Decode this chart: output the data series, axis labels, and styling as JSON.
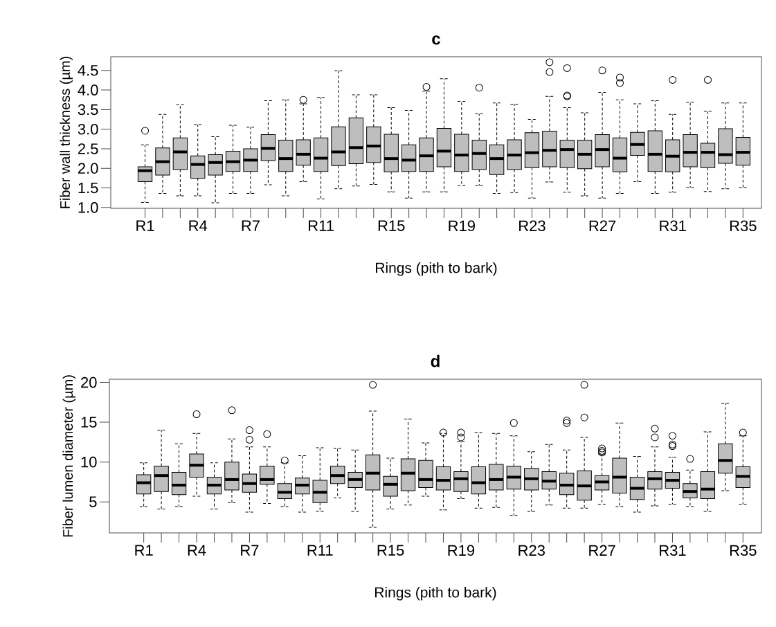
{
  "chart_data": [
    {
      "type": "box",
      "title": "c",
      "xlabel": "Rings (pith to bark)",
      "ylabel": "Fiber wall thickness (µm)",
      "color": "#bebebe",
      "categories": [
        "R1",
        null,
        null,
        "R4",
        null,
        null,
        "R7",
        null,
        null,
        null,
        "R11",
        null,
        null,
        null,
        "R15",
        null,
        null,
        null,
        "R19",
        null,
        null,
        null,
        "R23",
        null,
        null,
        null,
        "R27",
        null,
        null,
        null,
        "R31",
        null,
        null,
        null,
        "R35"
      ],
      "ylim": [
        0.98,
        4.85
      ],
      "yticks": [
        {
          "value": 1,
          "label": "1.0"
        },
        1.5,
        {
          "value": 2,
          "label": "2.0"
        },
        2.5,
        {
          "value": 3,
          "label": "3.0"
        },
        3.5,
        {
          "value": 4,
          "label": "4.0"
        },
        4.5
      ],
      "boxes": [
        {
          "low": 1.13,
          "q1": 1.66,
          "median": 1.94,
          "q3": 2.04,
          "high": 2.6,
          "outliers": [
            2.96
          ]
        },
        {
          "low": 1.36,
          "q1": 1.83,
          "median": 2.17,
          "q3": 2.52,
          "high": 3.38
        },
        {
          "low": 1.3,
          "q1": 1.97,
          "median": 2.42,
          "q3": 2.78,
          "high": 3.62
        },
        {
          "low": 1.3,
          "q1": 1.75,
          "median": 2.1,
          "q3": 2.32,
          "high": 3.12
        },
        {
          "low": 1.12,
          "q1": 1.83,
          "median": 2.15,
          "q3": 2.35,
          "high": 2.81
        },
        {
          "low": 1.36,
          "q1": 1.92,
          "median": 2.17,
          "q3": 2.44,
          "high": 3.1
        },
        {
          "low": 1.36,
          "q1": 1.92,
          "median": 2.21,
          "q3": 2.5,
          "high": 3.05
        },
        {
          "low": 1.58,
          "q1": 2.2,
          "median": 2.51,
          "q3": 2.86,
          "high": 3.73
        },
        {
          "low": 1.3,
          "q1": 1.92,
          "median": 2.25,
          "q3": 2.72,
          "high": 3.75
        },
        {
          "low": 1.66,
          "q1": 2.08,
          "median": 2.36,
          "q3": 2.73,
          "high": 3.65,
          "outliers": [
            3.75
          ]
        },
        {
          "low": 1.22,
          "q1": 1.92,
          "median": 2.26,
          "q3": 2.78,
          "high": 3.81
        },
        {
          "low": 1.48,
          "q1": 2.07,
          "median": 2.42,
          "q3": 3.06,
          "high": 4.49
        },
        {
          "low": 1.55,
          "q1": 2.12,
          "median": 2.53,
          "q3": 3.29,
          "high": 3.88
        },
        {
          "low": 1.59,
          "q1": 2.15,
          "median": 2.57,
          "q3": 3.06,
          "high": 3.88
        },
        {
          "low": 1.4,
          "q1": 1.91,
          "median": 2.25,
          "q3": 2.87,
          "high": 3.55
        },
        {
          "low": 1.24,
          "q1": 1.92,
          "median": 2.21,
          "q3": 2.6,
          "high": 3.48
        },
        {
          "low": 1.4,
          "q1": 1.92,
          "median": 2.32,
          "q3": 2.78,
          "high": 3.97,
          "outliers": [
            4.08
          ]
        },
        {
          "low": 1.4,
          "q1": 2.04,
          "median": 2.44,
          "q3": 3.02,
          "high": 4.29
        },
        {
          "low": 1.56,
          "q1": 1.92,
          "median": 2.34,
          "q3": 2.87,
          "high": 3.71
        },
        {
          "low": 1.56,
          "q1": 1.97,
          "median": 2.38,
          "q3": 2.72,
          "high": 3.39,
          "outliers": [
            4.06
          ]
        },
        {
          "low": 1.36,
          "q1": 1.84,
          "median": 2.25,
          "q3": 2.6,
          "high": 3.67
        },
        {
          "low": 1.38,
          "q1": 1.97,
          "median": 2.34,
          "q3": 2.73,
          "high": 3.64
        },
        {
          "low": 1.24,
          "q1": 2.02,
          "median": 2.4,
          "q3": 2.91,
          "high": 3.25
        },
        {
          "low": 1.65,
          "q1": 2.04,
          "median": 2.46,
          "q3": 2.95,
          "high": 3.84,
          "outliers": [
            4.71,
            4.46
          ]
        },
        {
          "low": 1.39,
          "q1": 2.02,
          "median": 2.48,
          "q3": 2.72,
          "high": 3.55,
          "outliers": [
            4.56,
            3.86,
            3.84
          ]
        },
        {
          "low": 1.3,
          "q1": 1.99,
          "median": 2.36,
          "q3": 2.72,
          "high": 3.42
        },
        {
          "low": 1.24,
          "q1": 2.04,
          "median": 2.48,
          "q3": 2.86,
          "high": 3.94,
          "outliers": [
            4.5
          ]
        },
        {
          "low": 1.36,
          "q1": 1.91,
          "median": 2.26,
          "q3": 2.78,
          "high": 3.75,
          "outliers": [
            4.32,
            4.18
          ]
        },
        {
          "low": 1.66,
          "q1": 2.33,
          "median": 2.61,
          "q3": 2.92,
          "high": 3.65
        },
        {
          "low": 1.36,
          "q1": 1.92,
          "median": 2.36,
          "q3": 2.96,
          "high": 3.73
        },
        {
          "low": 1.39,
          "q1": 1.91,
          "median": 2.31,
          "q3": 2.73,
          "high": 3.38,
          "outliers": [
            4.26
          ]
        },
        {
          "low": 1.51,
          "q1": 2.04,
          "median": 2.41,
          "q3": 2.86,
          "high": 3.69
        },
        {
          "low": 1.41,
          "q1": 2.02,
          "median": 2.41,
          "q3": 2.64,
          "high": 3.46,
          "outliers": [
            4.26
          ]
        },
        {
          "low": 1.48,
          "q1": 2.13,
          "median": 2.35,
          "q3": 3.01,
          "high": 3.67
        },
        {
          "low": 1.51,
          "q1": 2.08,
          "median": 2.41,
          "q3": 2.79,
          "high": 3.67
        }
      ]
    },
    {
      "type": "box",
      "title": "d",
      "xlabel": "Rings (pith to bark)",
      "ylabel": "Fiber lumen diameter (µm)",
      "color": "#bebebe",
      "categories": [
        "R1",
        null,
        null,
        "R4",
        null,
        null,
        "R7",
        null,
        null,
        null,
        "R11",
        null,
        null,
        null,
        "R15",
        null,
        null,
        null,
        "R19",
        null,
        null,
        null,
        "R23",
        null,
        null,
        null,
        "R27",
        null,
        null,
        null,
        "R31",
        null,
        null,
        null,
        "R35"
      ],
      "ylim": [
        1.1,
        20.4
      ],
      "yticks": [
        5,
        10,
        15,
        20
      ],
      "boxes": [
        {
          "low": 4.4,
          "q1": 6.0,
          "median": 7.4,
          "q3": 8.4,
          "high": 9.9
        },
        {
          "low": 4.1,
          "q1": 6.3,
          "median": 8.3,
          "q3": 9.5,
          "high": 14.0
        },
        {
          "low": 4.4,
          "q1": 5.9,
          "median": 7.1,
          "q3": 8.7,
          "high": 12.3
        },
        {
          "low": 5.7,
          "q1": 8.1,
          "median": 9.6,
          "q3": 11.0,
          "high": 13.6,
          "outliers": [
            16.0
          ]
        },
        {
          "low": 4.1,
          "q1": 6.0,
          "median": 7.1,
          "q3": 8.1,
          "high": 9.9
        },
        {
          "low": 4.9,
          "q1": 6.5,
          "median": 7.8,
          "q3": 10.0,
          "high": 12.9,
          "outliers": [
            16.5
          ]
        },
        {
          "low": 3.7,
          "q1": 6.2,
          "median": 7.3,
          "q3": 8.5,
          "high": 11.9,
          "outliers": [
            14.0,
            12.8
          ]
        },
        {
          "low": 4.8,
          "q1": 7.2,
          "median": 7.8,
          "q3": 9.5,
          "high": 11.9,
          "outliers": [
            13.5
          ]
        },
        {
          "low": 4.4,
          "q1": 5.4,
          "median": 6.2,
          "q3": 7.3,
          "high": 9.9,
          "outliers": [
            10.2
          ]
        },
        {
          "low": 3.7,
          "q1": 6.0,
          "median": 7.1,
          "q3": 8.0,
          "high": 10.8
        },
        {
          "low": 3.8,
          "q1": 4.9,
          "median": 6.2,
          "q3": 7.7,
          "high": 11.8
        },
        {
          "low": 5.5,
          "q1": 7.3,
          "median": 8.3,
          "q3": 9.5,
          "high": 11.7
        },
        {
          "low": 3.8,
          "q1": 6.8,
          "median": 7.8,
          "q3": 8.7,
          "high": 11.5
        },
        {
          "low": 1.8,
          "q1": 6.5,
          "median": 8.6,
          "q3": 10.9,
          "high": 16.4,
          "outliers": [
            19.7
          ]
        },
        {
          "low": 4.1,
          "q1": 5.7,
          "median": 7.2,
          "q3": 8.2,
          "high": 10.5
        },
        {
          "low": 4.6,
          "q1": 6.4,
          "median": 8.6,
          "q3": 10.4,
          "high": 15.4
        },
        {
          "low": 5.7,
          "q1": 6.8,
          "median": 7.8,
          "q3": 10.2,
          "high": 12.4
        },
        {
          "low": 4.0,
          "q1": 6.5,
          "median": 7.7,
          "q3": 9.4,
          "high": 13.6,
          "outliers": [
            13.7
          ]
        },
        {
          "low": 5.4,
          "q1": 6.3,
          "median": 7.9,
          "q3": 8.8,
          "high": 12.6,
          "outliers": [
            13.7,
            13.1
          ]
        },
        {
          "low": 4.2,
          "q1": 6.0,
          "median": 7.4,
          "q3": 9.4,
          "high": 13.7
        },
        {
          "low": 4.3,
          "q1": 6.5,
          "median": 7.8,
          "q3": 9.7,
          "high": 13.6
        },
        {
          "low": 3.3,
          "q1": 6.6,
          "median": 8.1,
          "q3": 9.5,
          "high": 13.3,
          "outliers": [
            14.9
          ]
        },
        {
          "low": 3.8,
          "q1": 6.5,
          "median": 7.9,
          "q3": 9.2,
          "high": 11.3
        },
        {
          "low": 4.6,
          "q1": 6.6,
          "median": 7.6,
          "q3": 8.8,
          "high": 12.2
        },
        {
          "low": 4.2,
          "q1": 5.9,
          "median": 7.1,
          "q3": 8.6,
          "high": 11.5,
          "outliers": [
            15.2,
            14.9
          ]
        },
        {
          "low": 4.2,
          "q1": 5.2,
          "median": 7.0,
          "q3": 8.9,
          "high": 13.1,
          "outliers": [
            19.7,
            15.6
          ]
        },
        {
          "low": 4.7,
          "q1": 6.5,
          "median": 7.5,
          "q3": 8.3,
          "high": 11.0,
          "outliers": [
            11.7,
            11.4,
            11.2
          ]
        },
        {
          "low": 4.4,
          "q1": 6.1,
          "median": 8.1,
          "q3": 10.5,
          "high": 14.9
        },
        {
          "low": 3.7,
          "q1": 5.3,
          "median": 6.7,
          "q3": 8.1,
          "high": 10.7
        },
        {
          "low": 4.5,
          "q1": 6.6,
          "median": 7.9,
          "q3": 8.8,
          "high": 11.9,
          "outliers": [
            14.2,
            13.1
          ]
        },
        {
          "low": 4.7,
          "q1": 6.7,
          "median": 7.7,
          "q3": 8.7,
          "high": 10.6,
          "outliers": [
            13.3,
            12.2,
            12.0
          ]
        },
        {
          "low": 4.4,
          "q1": 5.5,
          "median": 6.3,
          "q3": 7.3,
          "high": 9.0,
          "outliers": [
            10.4
          ]
        },
        {
          "low": 3.8,
          "q1": 5.4,
          "median": 6.6,
          "q3": 8.8,
          "high": 13.8
        },
        {
          "low": 6.4,
          "q1": 8.6,
          "median": 10.2,
          "q3": 12.3,
          "high": 17.4
        },
        {
          "low": 4.7,
          "q1": 6.8,
          "median": 8.2,
          "q3": 9.4,
          "high": 13.3,
          "outliers": [
            13.7
          ]
        }
      ]
    }
  ]
}
